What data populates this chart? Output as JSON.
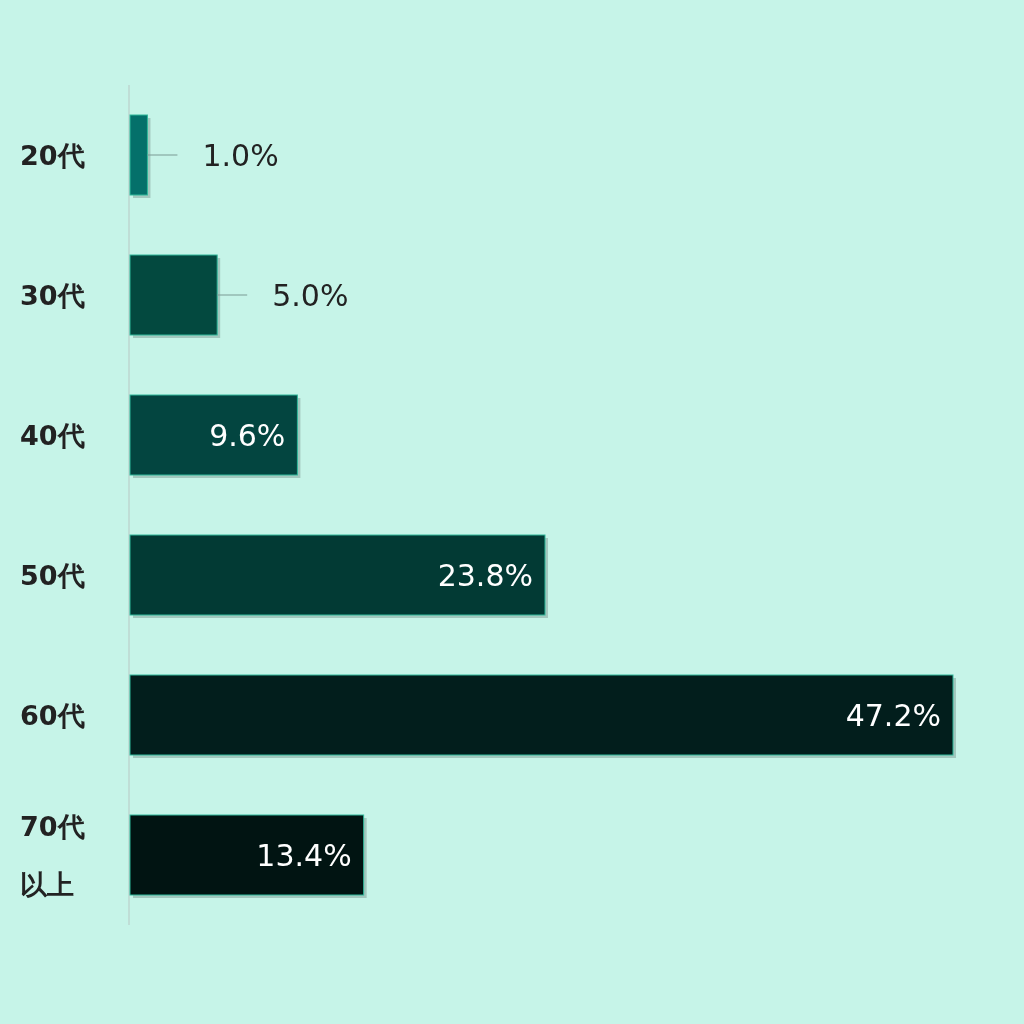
{
  "chart_data": {
    "type": "bar",
    "orientation": "horizontal",
    "categories": [
      "20代",
      "30代",
      "40代",
      "50代",
      "60代",
      "70代以上"
    ],
    "values": [
      1.0,
      5.0,
      9.6,
      23.8,
      47.2,
      13.4
    ],
    "value_labels": [
      "1.0%",
      "5.0%",
      "9.6%",
      "23.8%",
      "47.2%",
      "13.4%"
    ],
    "colors": [
      "#04706a",
      "#03493f",
      "#034540",
      "#023a34",
      "#021e1c",
      "#011412"
    ]
  }
}
